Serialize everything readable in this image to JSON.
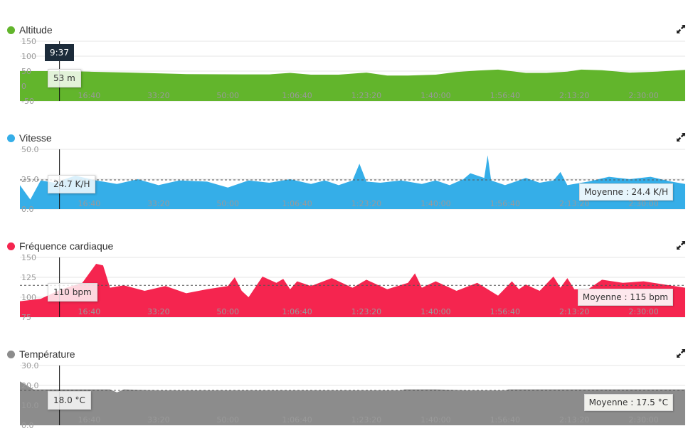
{
  "cursor": {
    "time": "9:37",
    "time_fraction": 0.0595
  },
  "x_ticks": [
    "16:40",
    "33:20",
    "50:00",
    "1:06:40",
    "1:23:20",
    "1:40:00",
    "1:56:40",
    "2:13:20",
    "2:30:00"
  ],
  "x_tick_seconds": [
    1000,
    2000,
    3000,
    4000,
    5000,
    6000,
    7000,
    8000,
    9000
  ],
  "x_max_seconds": 9600,
  "icons": {
    "expand": "expand-arrows-icon"
  },
  "chart_data": [
    {
      "key": "altitude",
      "type": "area",
      "title": "Altitude",
      "color": "#62b52c",
      "ylim": [
        -50,
        150
      ],
      "y_ticks": [
        "150",
        "100",
        "50",
        "0",
        "-50"
      ],
      "y_tick_values": [
        150,
        100,
        50,
        0,
        -50
      ],
      "cursor_value": "53 m",
      "average": null,
      "x": [
        0,
        600,
        1000,
        1600,
        2400,
        3200,
        3600,
        3900,
        4200,
        4600,
        5000,
        5300,
        5600,
        6000,
        6300,
        6600,
        6900,
        7300,
        7600,
        7900,
        8100,
        8400,
        8800,
        9200,
        9600
      ],
      "y": [
        50,
        50,
        48,
        45,
        40,
        39,
        39,
        44,
        38,
        38,
        45,
        35,
        35,
        38,
        47,
        52,
        55,
        44,
        44,
        48,
        55,
        53,
        45,
        48,
        54
      ]
    },
    {
      "key": "vitesse",
      "type": "area",
      "title": "Vitesse",
      "color": "#35aee8",
      "ylim": [
        0,
        50
      ],
      "y_ticks": [
        "50.0",
        "25.0",
        "0.0"
      ],
      "y_tick_values": [
        50,
        25,
        0
      ],
      "cursor_value": "24.7 K/H",
      "average": {
        "label": "Moyenne : 24.4 K/H",
        "value": 24.4
      },
      "x": [
        0,
        150,
        300,
        500,
        800,
        1100,
        1400,
        1700,
        2000,
        2300,
        2700,
        3000,
        3300,
        3600,
        3900,
        4200,
        4400,
        4600,
        4800,
        4900,
        5000,
        5200,
        5500,
        5800,
        6000,
        6200,
        6400,
        6500,
        6700,
        6750,
        6800,
        7000,
        7300,
        7500,
        7700,
        7800,
        7900,
        8200,
        8500,
        8800,
        9100,
        9400,
        9600
      ],
      "y": [
        20,
        8,
        24,
        22,
        28,
        24,
        21,
        25,
        20,
        24,
        23,
        18,
        24,
        22,
        25,
        21,
        24,
        20,
        24,
        38,
        23,
        22,
        24,
        21,
        24,
        20,
        25,
        30,
        26,
        45,
        24,
        20,
        26,
        22,
        24,
        31,
        20,
        23,
        27,
        25,
        27,
        23,
        21
      ]
    },
    {
      "key": "frequence",
      "type": "area",
      "title": "Fréquence cardiaque",
      "color": "#f5254f",
      "ylim": [
        75,
        150
      ],
      "y_ticks": [
        "150",
        "125",
        "100",
        "75"
      ],
      "y_tick_values": [
        150,
        125,
        100,
        75
      ],
      "cursor_value": "110 bpm",
      "average": {
        "label": "Moyenne : 115 bpm",
        "value": 115
      },
      "x": [
        0,
        300,
        600,
        900,
        1000,
        1100,
        1200,
        1300,
        1500,
        1800,
        2100,
        2400,
        2700,
        3000,
        3100,
        3200,
        3300,
        3500,
        3700,
        3800,
        3900,
        4000,
        4200,
        4500,
        4800,
        5000,
        5300,
        5600,
        5700,
        5800,
        6000,
        6300,
        6600,
        6900,
        7100,
        7200,
        7300,
        7500,
        7700,
        7800,
        7900,
        8000,
        8200,
        8400,
        8700,
        9000,
        9300,
        9600
      ],
      "y": [
        95,
        98,
        110,
        118,
        130,
        142,
        140,
        112,
        115,
        108,
        114,
        105,
        110,
        114,
        125,
        108,
        100,
        126,
        118,
        123,
        110,
        120,
        114,
        124,
        112,
        122,
        110,
        118,
        130,
        112,
        120,
        108,
        118,
        102,
        120,
        110,
        116,
        108,
        126,
        112,
        124,
        110,
        110,
        122,
        118,
        120,
        116,
        112
      ]
    },
    {
      "key": "temperature",
      "type": "area",
      "title": "Température",
      "color": "#8c8c8c",
      "ylim": [
        0,
        30
      ],
      "y_ticks": [
        "30.0",
        "20.0",
        "10.0",
        "0.0"
      ],
      "y_tick_values": [
        30,
        20,
        10,
        0
      ],
      "cursor_value": "18.0 °C",
      "average": {
        "label": "Moyenne : 17.5 °C",
        "value": 17.5
      },
      "x": [
        0,
        100,
        200,
        400,
        800,
        1300,
        1400,
        1500,
        2000,
        3000,
        4000,
        5000,
        5500,
        5550,
        6000,
        6500,
        7000,
        7050,
        7500,
        8000,
        9000,
        9600
      ],
      "y": [
        22,
        20,
        18,
        18,
        18,
        18,
        16.5,
        18,
        17.5,
        17.5,
        17.5,
        17.5,
        17.5,
        18,
        18,
        17.5,
        17.5,
        18,
        18,
        18,
        18,
        18
      ]
    }
  ]
}
